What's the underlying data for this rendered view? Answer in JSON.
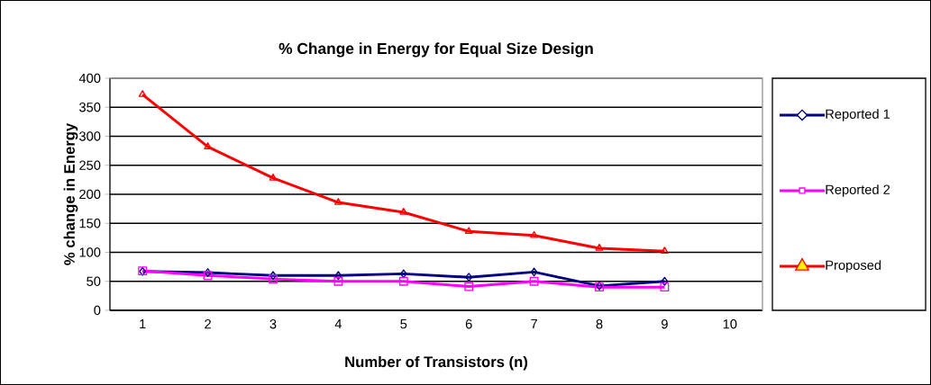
{
  "chart_data": {
    "type": "line",
    "title": "% Change in Energy  for Equal Size Design",
    "xlabel": "Number of Transistors (n)",
    "ylabel": "% change in Energy",
    "categories": [
      "1",
      "2",
      "3",
      "4",
      "5",
      "6",
      "7",
      "8",
      "9",
      "10"
    ],
    "series": [
      {
        "name": "Reported 1",
        "color": "#000080",
        "marker": "diamond",
        "values": [
          67,
          65,
          60,
          60,
          63,
          57,
          66,
          42,
          50,
          null
        ]
      },
      {
        "name": "Reported 2",
        "color": "#ff00ff",
        "marker": "square",
        "values": [
          68,
          60,
          54,
          50,
          50,
          41,
          50,
          40,
          40,
          null
        ]
      },
      {
        "name": "Proposed",
        "color": "#ff0000",
        "marker": "triangle",
        "values": [
          372,
          282,
          228,
          186,
          169,
          136,
          129,
          107,
          102,
          null
        ]
      }
    ],
    "ylim": [
      0,
      400
    ],
    "yticks": [
      0,
      50,
      100,
      150,
      200,
      250,
      300,
      350,
      400
    ],
    "grid": "y",
    "legend": "right",
    "line_style": "solid"
  }
}
